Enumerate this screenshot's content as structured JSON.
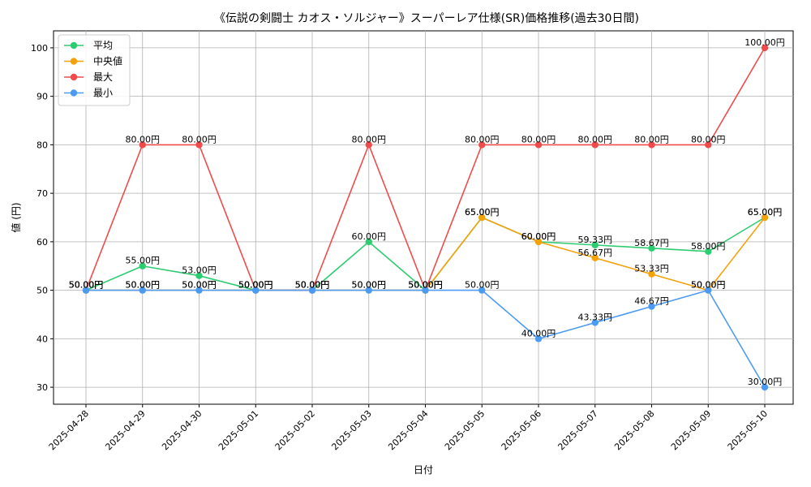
{
  "chart_data": {
    "type": "line",
    "title": "《伝説の剣闘士 カオス・ソルジャー》スーパーレア仕様(SR)価格推移(過去30日間)",
    "xlabel": "日付",
    "ylabel": "値 (円)",
    "ylim": [
      26.5,
      103.5
    ],
    "yticks": [
      30,
      40,
      50,
      60,
      70,
      80,
      90,
      100
    ],
    "grid": true,
    "legend_position": "top-left",
    "label_suffix": "円",
    "categories": [
      "2025-04-28",
      "2025-04-29",
      "2025-04-30",
      "2025-05-01",
      "2025-05-02",
      "2025-05-03",
      "2025-05-04",
      "2025-05-05",
      "2025-05-06",
      "2025-05-07",
      "2025-05-08",
      "2025-05-09",
      "2025-05-10"
    ],
    "series": [
      {
        "name": "平均",
        "color": "#2ecc71",
        "values": [
          50,
          55,
          53,
          50,
          50,
          60,
          50,
          65,
          60,
          59.33,
          58.67,
          58,
          65
        ]
      },
      {
        "name": "中央値",
        "color": "#f5a10a",
        "values": [
          50,
          50,
          50,
          50,
          50,
          50,
          50,
          65,
          60,
          56.67,
          53.33,
          50,
          65
        ]
      },
      {
        "name": "最大",
        "color": "#ef4b4b",
        "values": [
          50,
          80,
          80,
          50,
          50,
          80,
          50,
          80,
          80,
          80,
          80,
          80,
          100
        ]
      },
      {
        "name": "最小",
        "color": "#4b9bf5",
        "values": [
          50,
          50,
          50,
          50,
          50,
          50,
          50,
          50,
          40,
          43.33,
          46.67,
          50,
          30
        ]
      }
    ]
  }
}
